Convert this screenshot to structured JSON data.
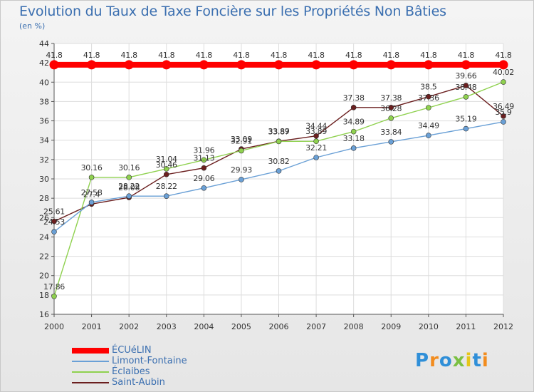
{
  "chart_data": {
    "type": "line",
    "title": "Evolution du Taux de Taxe Foncière sur les Propriétés Non Bâties",
    "subtitle": "(en %)",
    "x": [
      "2000",
      "2001",
      "2002",
      "2003",
      "2004",
      "2005",
      "2006",
      "2007",
      "2008",
      "2009",
      "2010",
      "2011",
      "2012"
    ],
    "yticks": [
      16,
      18,
      20,
      22,
      24,
      26,
      28,
      30,
      32,
      34,
      36,
      38,
      40,
      42,
      44
    ],
    "ylim": [
      16,
      44
    ],
    "grid": true,
    "legend_position": "bottom-left",
    "series": [
      {
        "name": "ÉCUéLIN",
        "color": "#ff0000",
        "values": [
          41.8,
          41.8,
          41.8,
          41.8,
          41.8,
          41.8,
          41.8,
          41.8,
          41.8,
          41.8,
          41.8,
          41.8,
          41.8
        ],
        "labels": [
          "41.8",
          "41.8",
          "41.8",
          "41.8",
          "41.8",
          "41.8",
          "41.8",
          "41.8",
          "41.8",
          "41.8",
          "41.8",
          "41.8",
          "41.8"
        ]
      },
      {
        "name": "Limont-Fontaine",
        "color": "#6aa0d6",
        "values": [
          24.53,
          27.58,
          28.22,
          28.22,
          29.06,
          29.93,
          30.82,
          32.21,
          33.18,
          33.84,
          34.49,
          35.19,
          35.9
        ],
        "labels": [
          "24.53",
          "27.58",
          "28.22",
          "28.22",
          "29.06",
          "29.93",
          "30.82",
          "32.21",
          "33.18",
          "33.84",
          "34.49",
          "35.19",
          "35.9"
        ]
      },
      {
        "name": "Éclaibes",
        "color": "#8fd14f",
        "values": [
          17.86,
          30.16,
          30.16,
          31.04,
          31.96,
          32.91,
          33.87,
          33.89,
          34.89,
          36.28,
          37.36,
          38.48,
          40.02
        ],
        "labels": [
          "17.86",
          "30.16",
          "30.16",
          "31.04",
          "31.96",
          "32.91",
          "33.87",
          "33.89",
          "34.89",
          "36.28",
          "37.36",
          "38.48",
          "40.02"
        ]
      },
      {
        "name": "Saint-Aubin",
        "color": "#6b1f1f",
        "values": [
          25.61,
          27.4,
          28.08,
          30.46,
          31.13,
          33.09,
          33.89,
          34.44,
          37.38,
          37.38,
          38.5,
          39.66,
          36.49
        ],
        "labels": [
          "25.61",
          "27.4",
          "28.08",
          "30.46",
          "31.13",
          "33.09",
          "33.89",
          "34.44",
          "37.38",
          "37.38",
          "38.5",
          "39.66",
          "36.49"
        ]
      }
    ]
  },
  "brand": {
    "letters": [
      "P",
      "r",
      "o",
      "x",
      "i",
      "t",
      "i"
    ],
    "colors": [
      "#2f8fd8",
      "#f28c1e",
      "#2f8fd8",
      "#7bc043",
      "#e6c619",
      "#2f8fd8",
      "#f28c1e"
    ]
  }
}
